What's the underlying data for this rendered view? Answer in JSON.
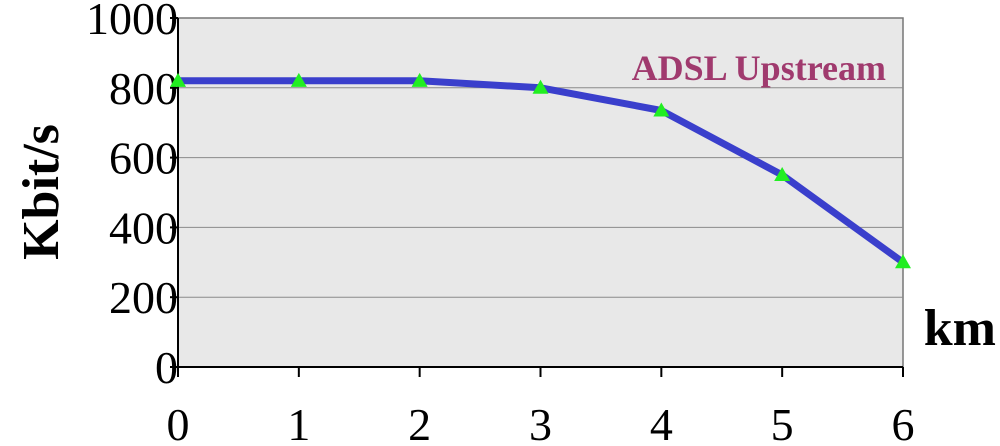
{
  "chart_data": {
    "type": "line",
    "xlabel": "km",
    "ylabel": "Kbit/s",
    "x": [
      0,
      1,
      2,
      3,
      4,
      5,
      6
    ],
    "xticks": [
      "0",
      "1",
      "2",
      "3",
      "4",
      "5",
      "6"
    ],
    "yticks": [
      "0",
      "200",
      "400",
      "600",
      "800",
      "1000"
    ],
    "xlim": [
      0,
      6
    ],
    "ylim": [
      0,
      1000
    ],
    "grid": true,
    "series": [
      {
        "values": [
          820,
          820,
          820,
          800,
          735,
          550,
          300
        ]
      }
    ],
    "annotation": "ADSL Upstream",
    "colors": {
      "plot_background": "#e8e8e8",
      "line": "#3a3fcc",
      "marker": "#22ee22",
      "annotation": "#a03a6e",
      "grid": "#8a8a8a"
    }
  }
}
